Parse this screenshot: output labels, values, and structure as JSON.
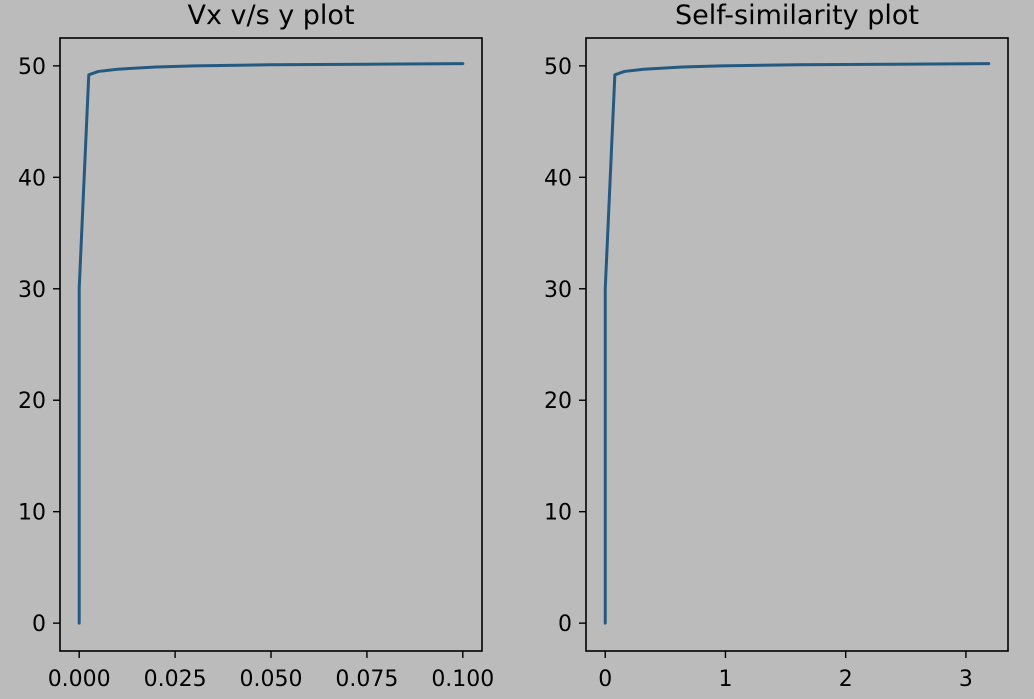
{
  "figure": {
    "background": "#bbbbbb",
    "line_color": "#255a80"
  },
  "chart_data": [
    {
      "type": "line",
      "title": "Vx v/s y plot",
      "xlabel": "",
      "ylabel": "",
      "xlim": [
        -0.005,
        0.105
      ],
      "ylim": [
        -2.5,
        52.5
      ],
      "xticks": [
        0.0,
        0.025,
        0.05,
        0.075,
        0.1
      ],
      "xtick_labels": [
        "0.000",
        "0.025",
        "0.050",
        "0.075",
        "0.100"
      ],
      "yticks": [
        0,
        10,
        20,
        30,
        40,
        50
      ],
      "ytick_labels": [
        "0",
        "10",
        "20",
        "30",
        "40",
        "50"
      ],
      "grid": false,
      "series": [
        {
          "x": [
            0.0,
            0.0,
            0.0025,
            0.005,
            0.01,
            0.02,
            0.03,
            0.05,
            0.075,
            0.1
          ],
          "y": [
            0,
            30,
            49.2,
            49.5,
            49.7,
            49.9,
            50.0,
            50.1,
            50.15,
            50.2
          ]
        }
      ]
    },
    {
      "type": "line",
      "title": "Self-similarity plot",
      "xlabel": "",
      "ylabel": "",
      "xlim": [
        -0.16,
        3.35
      ],
      "ylim": [
        -2.5,
        52.5
      ],
      "xticks": [
        0,
        1,
        2,
        3
      ],
      "xtick_labels": [
        "0",
        "1",
        "2",
        "3"
      ],
      "yticks": [
        0,
        10,
        20,
        30,
        40,
        50
      ],
      "ytick_labels": [
        "0",
        "10",
        "20",
        "30",
        "40",
        "50"
      ],
      "grid": false,
      "series": [
        {
          "x": [
            0.0,
            0.0,
            0.08,
            0.16,
            0.32,
            0.64,
            0.96,
            1.6,
            2.4,
            3.19
          ],
          "y": [
            0,
            30,
            49.2,
            49.5,
            49.7,
            49.9,
            50.0,
            50.1,
            50.15,
            50.2
          ]
        }
      ]
    }
  ]
}
